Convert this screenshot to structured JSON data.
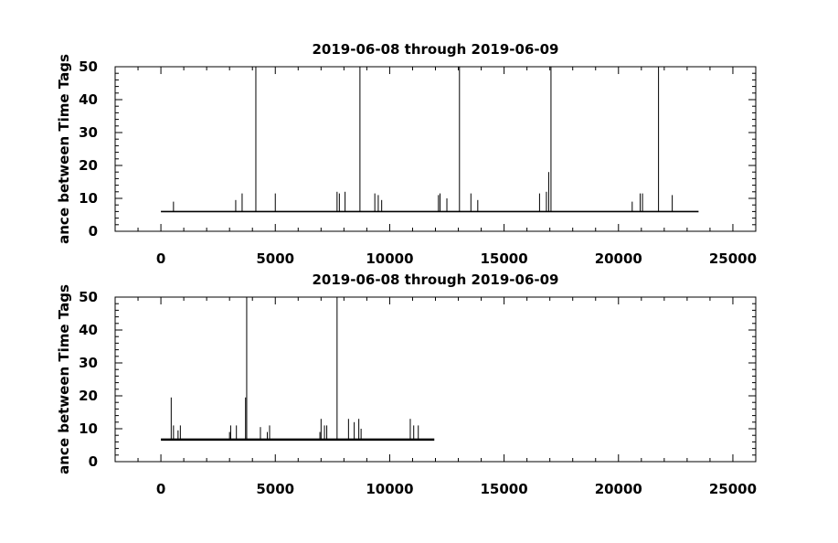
{
  "chart_data": [
    {
      "type": "line",
      "title": "2019-06-08 through 2019-06-09",
      "ylabel": "ance between Time Tags",
      "xlabel": "",
      "xlim": [
        -2000,
        26000
      ],
      "ylim": [
        0,
        50
      ],
      "x_ticks": [
        "0",
        "5000",
        "10000",
        "15000",
        "20000",
        "25000"
      ],
      "y_ticks": [
        "0",
        "10",
        "20",
        "30",
        "40",
        "50"
      ],
      "grid": false,
      "baseline": 6,
      "x_extent": [
        0,
        23500
      ],
      "spikes": [
        {
          "x": 550,
          "y": 9
        },
        {
          "x": 3270,
          "y": 9.5
        },
        {
          "x": 3550,
          "y": 11.5
        },
        {
          "x": 4150,
          "y": 50
        },
        {
          "x": 5000,
          "y": 11.5
        },
        {
          "x": 7700,
          "y": 12
        },
        {
          "x": 7800,
          "y": 11.5
        },
        {
          "x": 8050,
          "y": 12
        },
        {
          "x": 8700,
          "y": 50
        },
        {
          "x": 9350,
          "y": 11.5
        },
        {
          "x": 9500,
          "y": 11
        },
        {
          "x": 9650,
          "y": 9.5
        },
        {
          "x": 12130,
          "y": 11
        },
        {
          "x": 12200,
          "y": 11.5
        },
        {
          "x": 12500,
          "y": 10
        },
        {
          "x": 13050,
          "y": 50
        },
        {
          "x": 13550,
          "y": 11.5
        },
        {
          "x": 13850,
          "y": 9.5
        },
        {
          "x": 16550,
          "y": 11.5
        },
        {
          "x": 16850,
          "y": 12
        },
        {
          "x": 16950,
          "y": 18
        },
        {
          "x": 17050,
          "y": 50
        },
        {
          "x": 20600,
          "y": 9
        },
        {
          "x": 20950,
          "y": 11.5
        },
        {
          "x": 21050,
          "y": 11.5
        },
        {
          "x": 21750,
          "y": 50
        },
        {
          "x": 22350,
          "y": 11
        }
      ],
      "series": [
        {
          "values": []
        }
      ]
    },
    {
      "type": "line",
      "title": "2019-06-08 through 2019-06-09",
      "ylabel": "ance between Time Tags",
      "xlabel": "",
      "xlim": [
        -2000,
        26000
      ],
      "ylim": [
        0,
        50
      ],
      "x_ticks": [
        "0",
        "5000",
        "10000",
        "15000",
        "20000",
        "25000"
      ],
      "y_ticks": [
        "0",
        "10",
        "20",
        "30",
        "40",
        "50"
      ],
      "grid": false,
      "baseline": 6.7,
      "x_extent": [
        0,
        11950
      ],
      "spikes": [
        {
          "x": 450,
          "y": 19.5
        },
        {
          "x": 550,
          "y": 11
        },
        {
          "x": 750,
          "y": 9.5
        },
        {
          "x": 850,
          "y": 11
        },
        {
          "x": 3000,
          "y": 9
        },
        {
          "x": 3050,
          "y": 11
        },
        {
          "x": 3300,
          "y": 11
        },
        {
          "x": 3700,
          "y": 19.5
        },
        {
          "x": 3750,
          "y": 50
        },
        {
          "x": 4350,
          "y": 10.5
        },
        {
          "x": 4650,
          "y": 9
        },
        {
          "x": 4750,
          "y": 11
        },
        {
          "x": 6950,
          "y": 9
        },
        {
          "x": 7000,
          "y": 13
        },
        {
          "x": 7150,
          "y": 11
        },
        {
          "x": 7250,
          "y": 11
        },
        {
          "x": 7700,
          "y": 50
        },
        {
          "x": 8200,
          "y": 13
        },
        {
          "x": 8450,
          "y": 12
        },
        {
          "x": 8650,
          "y": 13
        },
        {
          "x": 8750,
          "y": 10
        },
        {
          "x": 10900,
          "y": 13
        },
        {
          "x": 11050,
          "y": 11
        },
        {
          "x": 11250,
          "y": 11
        }
      ],
      "series": [
        {
          "values": []
        }
      ]
    }
  ]
}
